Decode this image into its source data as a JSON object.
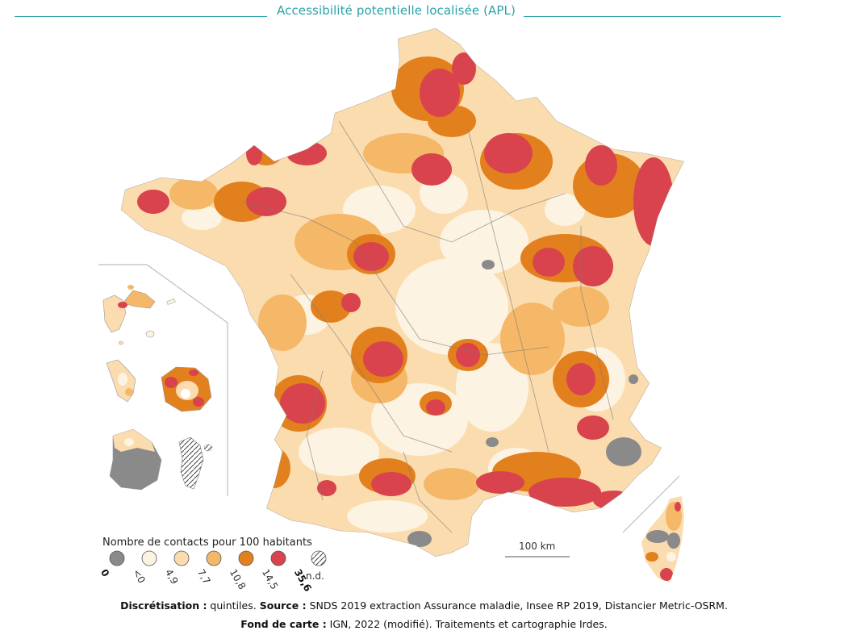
{
  "title": "Accessibilité potentielle localisée (APL)",
  "legend": {
    "title": "Nombre de contacts pour 100 habitants",
    "classes": [
      {
        "label": "0",
        "color": "#8a8a8a",
        "bold": true
      },
      {
        "label": "<0",
        "color": "#fdf3e3",
        "bold": false
      },
      {
        "label": "4,9",
        "color": "#fbdcae",
        "bold": false
      },
      {
        "label": "7,7",
        "color": "#f4b868",
        "bold": false
      },
      {
        "label": "10,8",
        "color": "#e3801e",
        "bold": false
      },
      {
        "label": "14,5",
        "color": "#d8434d",
        "bold": false
      },
      {
        "label": "35,6",
        "color": "",
        "bold": true
      }
    ],
    "nd_label": "n.d."
  },
  "scale_label": "100 km",
  "footer": {
    "line1_bold_a": "Discrétisation :",
    "line1_text_a": " quintiles. ",
    "line1_bold_b": "Source :",
    "line1_text_b": " SNDS 2019 extraction Assurance maladie, Insee RP 2019, Distancier Metric-OSRM.",
    "line2_bold": "Fond de carte :",
    "line2_text": " IGN, 2022 (modifié). Traitements et cartographie Irdes."
  },
  "colors": {
    "accent": "#2aa4a8",
    "grey": "#8a8a8a",
    "q1": "#fdf3e3",
    "q2": "#fbdcae",
    "q3": "#f4b868",
    "q4": "#e3801e",
    "q5": "#d8434d"
  }
}
